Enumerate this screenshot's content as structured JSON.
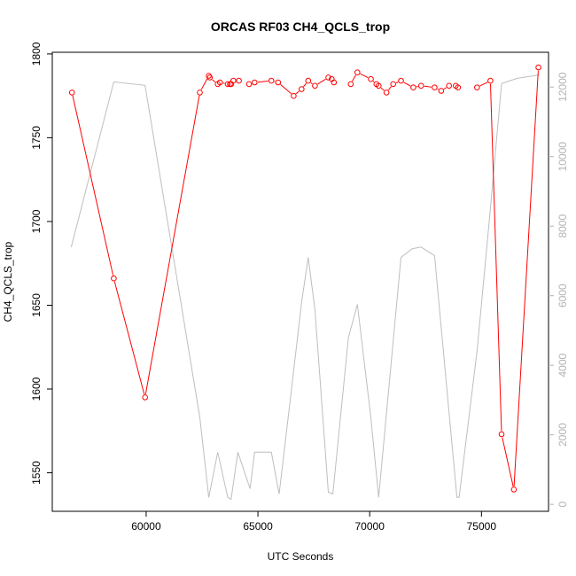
{
  "chart_data": {
    "type": "line",
    "title": "ORCAS RF03 CH4_QCLS_trop",
    "xlabel": "UTC Seconds",
    "ylabel": "CH4_QCLS_trop",
    "xlim": [
      55800,
      78000
    ],
    "ylim_left": [
      1527,
      1801
    ],
    "ylim_right": [
      -200,
      13000
    ],
    "x_ticks": [
      60000,
      65000,
      70000,
      75000
    ],
    "y_ticks_left": [
      1550,
      1600,
      1650,
      1700,
      1750,
      1800
    ],
    "y_ticks_right": [
      0,
      2000,
      4000,
      6000,
      8000,
      10000,
      12000
    ],
    "series": [
      {
        "role": "primary",
        "axis": "left",
        "color": "#ff0000",
        "style": "line+circles",
        "segments": [
          {
            "x": [
              56680,
              58550,
              59950,
              62400,
              62800,
              62850,
              63200,
              63300,
              63650,
              63750,
              63800,
              63900,
              64150
            ],
            "y": [
              1777,
              1666,
              1595,
              1777,
              1787,
              1786,
              1782,
              1783,
              1782,
              1782,
              1782,
              1784,
              1784
            ]
          },
          {
            "x": [
              64600,
              64850,
              65600,
              65900,
              66600,
              66950,
              67250,
              67550,
              68150,
              68300,
              68400
            ],
            "y": [
              1782,
              1783,
              1784,
              1783,
              1775,
              1779,
              1784,
              1781,
              1786,
              1785,
              1783
            ]
          },
          {
            "x": [
              69150,
              69450,
              70050,
              70300,
              70400,
              70750,
              71050,
              71400,
              71950,
              72300,
              72900,
              73200,
              73550,
              73850,
              73950
            ],
            "y": [
              1782,
              1789,
              1785,
              1782,
              1781,
              1777,
              1782,
              1784,
              1780,
              1781,
              1780,
              1778,
              1781,
              1781,
              1780
            ]
          },
          {
            "x": [
              74800,
              75400,
              75900,
              76450,
              77550
            ],
            "y": [
              1780,
              1784,
              1573,
              1540,
              1792
            ]
          }
        ]
      },
      {
        "role": "secondary",
        "axis": "right",
        "color": "#bebebe",
        "style": "line",
        "x": [
          56650,
          58550,
          59950,
          62400,
          62800,
          63200,
          63650,
          63800,
          64100,
          64650,
          64850,
          65600,
          65950,
          66500,
          66950,
          67250,
          67550,
          68150,
          68350,
          69050,
          69450,
          70050,
          70400,
          71400,
          71900,
          72300,
          72900,
          73900,
          74000,
          74800,
          75400,
          75900,
          76600,
          77600
        ],
        "y": [
          7400,
          12150,
          12050,
          2500,
          200,
          1500,
          200,
          150,
          1500,
          450,
          1500,
          1500,
          300,
          3300,
          5800,
          7100,
          5600,
          350,
          300,
          4800,
          5750,
          2500,
          200,
          7100,
          7350,
          7400,
          7150,
          200,
          200,
          4400,
          8500,
          12100,
          12250,
          12350
        ]
      }
    ]
  }
}
